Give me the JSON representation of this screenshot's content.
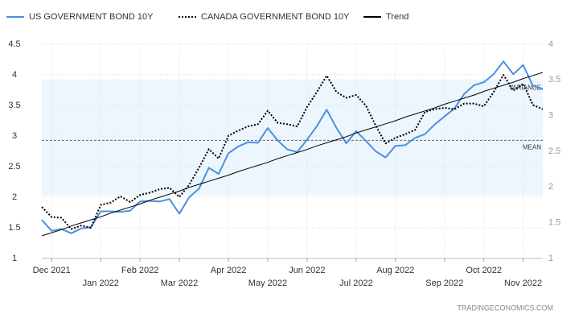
{
  "chart_data": {
    "type": "line",
    "categories": [
      null,
      "Dec 2021",
      null,
      null,
      null,
      null,
      "Jan 2022",
      null,
      null,
      null,
      "Feb 2022",
      null,
      null,
      null,
      "Mar 2022",
      null,
      null,
      null,
      null,
      "Apr 2022",
      null,
      null,
      null,
      "May 2022",
      null,
      null,
      null,
      "Jun 2022",
      null,
      null,
      null,
      null,
      "Jul 2022",
      null,
      null,
      null,
      "Aug 2022",
      null,
      null,
      null,
      null,
      "Sep 2022",
      null,
      null,
      null,
      "Oct 2022",
      null,
      null,
      null,
      "Nov 2022",
      null,
      null
    ],
    "series": [
      {
        "name": "US GOVERNMENT BOND 10Y",
        "color": "#4a90e2",
        "style": "solid",
        "values": [
          1.63,
          1.45,
          1.48,
          1.41,
          1.49,
          1.51,
          1.77,
          1.77,
          1.76,
          1.78,
          1.93,
          1.94,
          1.93,
          1.97,
          1.73,
          2.0,
          2.14,
          2.48,
          2.38,
          2.72,
          2.83,
          2.9,
          2.89,
          3.13,
          2.93,
          2.78,
          2.74,
          2.94,
          3.16,
          3.43,
          3.13,
          2.88,
          3.08,
          2.92,
          2.75,
          2.65,
          2.84,
          2.85,
          2.97,
          3.03,
          3.19,
          3.32,
          3.45,
          3.69,
          3.83,
          3.88,
          4.01,
          4.22,
          4.01,
          4.16,
          3.82,
          3.77
        ]
      },
      {
        "name": "CANADA GOVERNMENT BOND 10Y",
        "color": "#000000",
        "style": "dotted",
        "axis": "y2",
        "values": [
          1.72,
          1.58,
          1.57,
          1.41,
          1.46,
          1.43,
          1.75,
          1.78,
          1.87,
          1.79,
          1.89,
          1.92,
          1.97,
          1.99,
          1.86,
          2.03,
          2.27,
          2.53,
          2.4,
          2.72,
          2.79,
          2.85,
          2.88,
          3.07,
          2.9,
          2.88,
          2.85,
          3.12,
          3.33,
          3.56,
          3.33,
          3.25,
          3.29,
          3.14,
          2.86,
          2.61,
          2.69,
          2.74,
          2.8,
          3.05,
          3.09,
          3.11,
          3.09,
          3.17,
          3.17,
          3.13,
          3.33,
          3.57,
          3.35,
          3.45,
          3.15,
          3.09
        ]
      },
      {
        "name": "Trend",
        "color": "#000000",
        "style": "thin",
        "values": [
          1.37,
          1.42,
          1.47,
          1.53,
          1.58,
          1.63,
          1.68,
          1.74,
          1.79,
          1.84,
          1.89,
          1.95,
          2.0,
          2.05,
          2.1,
          2.16,
          2.21,
          2.26,
          2.31,
          2.36,
          2.42,
          2.47,
          2.52,
          2.57,
          2.63,
          2.68,
          2.73,
          2.78,
          2.84,
          2.89,
          2.94,
          2.99,
          3.05,
          3.1,
          3.15,
          3.2,
          3.25,
          3.31,
          3.36,
          3.41,
          3.46,
          3.52,
          3.57,
          3.62,
          3.67,
          3.73,
          3.78,
          3.83,
          3.88,
          3.94,
          3.99,
          4.04
        ]
      }
    ],
    "ylim": [
      1,
      4.5
    ],
    "yticks": [
      1,
      1.5,
      2,
      2.5,
      3,
      3.5,
      4,
      4.5
    ],
    "y2lim": [
      1,
      4
    ],
    "y2ticks": [
      1,
      1.5,
      2,
      2.5,
      3,
      3.5,
      4
    ],
    "variance": {
      "from": 2.03,
      "to": 3.93,
      "label": "VARIANCE",
      "color": "#eef6fd"
    },
    "mean": {
      "value": 2.93,
      "label": "MEAN"
    },
    "grid": true,
    "source": "TRADINGECONOMICS.COM"
  }
}
